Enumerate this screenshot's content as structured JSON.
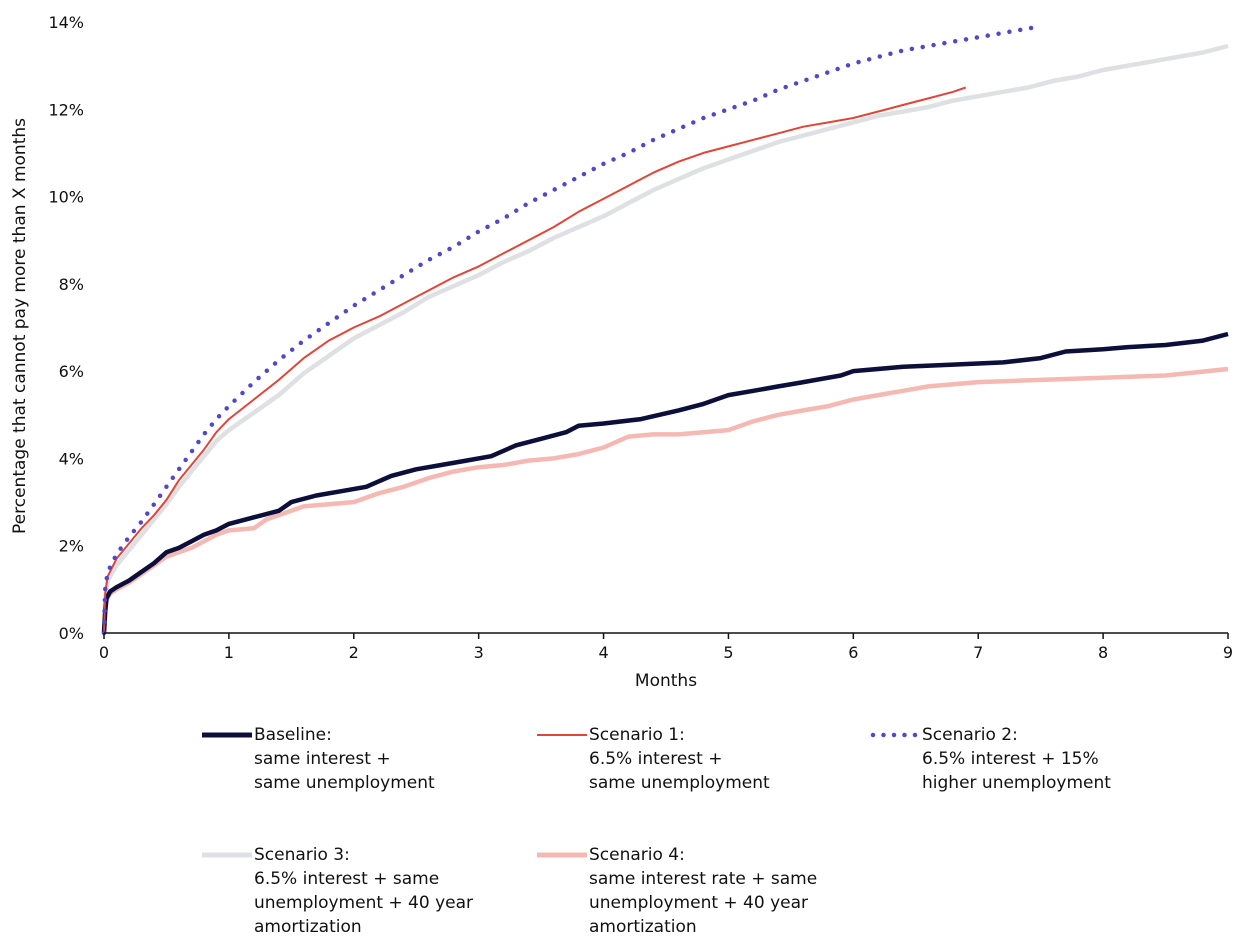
{
  "chart_data": {
    "type": "line",
    "title": "",
    "xlabel": "Months",
    "ylabel": "Percentage that cannot pay more than X months",
    "xlim": [
      0,
      9
    ],
    "ylim": [
      0,
      14
    ],
    "x_ticks": [
      "0",
      "1",
      "2",
      "3",
      "4",
      "5",
      "6",
      "7",
      "8",
      "9"
    ],
    "y_ticks": [
      "0%",
      "2%",
      "4%",
      "6%",
      "8%",
      "10%",
      "12%",
      "14%"
    ],
    "grid": false,
    "legend_position": "bottom",
    "series": [
      {
        "name": "Baseline:",
        "label_lines": [
          "Baseline:",
          "same interest +",
          "same unemployment"
        ],
        "color": "#0b0f3a",
        "style": "solid-thick",
        "points": [
          [
            0,
            0
          ],
          [
            0.01,
            0.5
          ],
          [
            0.02,
            0.8
          ],
          [
            0.05,
            0.95
          ],
          [
            0.1,
            1.05
          ],
          [
            0.2,
            1.2
          ],
          [
            0.3,
            1.4
          ],
          [
            0.4,
            1.6
          ],
          [
            0.5,
            1.85
          ],
          [
            0.6,
            1.95
          ],
          [
            0.7,
            2.1
          ],
          [
            0.8,
            2.25
          ],
          [
            0.9,
            2.35
          ],
          [
            1.0,
            2.5
          ],
          [
            1.2,
            2.65
          ],
          [
            1.4,
            2.8
          ],
          [
            1.5,
            3.0
          ],
          [
            1.7,
            3.15
          ],
          [
            1.9,
            3.25
          ],
          [
            2.1,
            3.35
          ],
          [
            2.3,
            3.6
          ],
          [
            2.5,
            3.75
          ],
          [
            2.7,
            3.85
          ],
          [
            2.9,
            3.95
          ],
          [
            3.1,
            4.05
          ],
          [
            3.3,
            4.3
          ],
          [
            3.5,
            4.45
          ],
          [
            3.7,
            4.6
          ],
          [
            3.8,
            4.75
          ],
          [
            4.0,
            4.8
          ],
          [
            4.3,
            4.9
          ],
          [
            4.6,
            5.1
          ],
          [
            4.8,
            5.25
          ],
          [
            5.0,
            5.45
          ],
          [
            5.2,
            5.55
          ],
          [
            5.4,
            5.65
          ],
          [
            5.6,
            5.75
          ],
          [
            5.9,
            5.9
          ],
          [
            6.0,
            6.0
          ],
          [
            6.4,
            6.1
          ],
          [
            6.8,
            6.15
          ],
          [
            7.2,
            6.2
          ],
          [
            7.5,
            6.3
          ],
          [
            7.7,
            6.45
          ],
          [
            8.0,
            6.5
          ],
          [
            8.2,
            6.55
          ],
          [
            8.5,
            6.6
          ],
          [
            8.8,
            6.7
          ],
          [
            9.0,
            6.85
          ]
        ]
      },
      {
        "name": "Scenario 1:",
        "label_lines": [
          "Scenario 1:",
          "6.5% interest +",
          "same unemployment"
        ],
        "color": "#e0453a",
        "style": "solid-thin",
        "points": [
          [
            0,
            0
          ],
          [
            0.01,
            0.9
          ],
          [
            0.03,
            1.3
          ],
          [
            0.1,
            1.7
          ],
          [
            0.2,
            2.05
          ],
          [
            0.3,
            2.4
          ],
          [
            0.4,
            2.7
          ],
          [
            0.5,
            3.05
          ],
          [
            0.6,
            3.5
          ],
          [
            0.7,
            3.85
          ],
          [
            0.8,
            4.2
          ],
          [
            0.9,
            4.6
          ],
          [
            1.0,
            4.9
          ],
          [
            1.2,
            5.35
          ],
          [
            1.4,
            5.8
          ],
          [
            1.6,
            6.3
          ],
          [
            1.8,
            6.7
          ],
          [
            2.0,
            7.0
          ],
          [
            2.2,
            7.25
          ],
          [
            2.4,
            7.55
          ],
          [
            2.6,
            7.85
          ],
          [
            2.8,
            8.15
          ],
          [
            3.0,
            8.4
          ],
          [
            3.2,
            8.7
          ],
          [
            3.4,
            9.0
          ],
          [
            3.6,
            9.3
          ],
          [
            3.8,
            9.65
          ],
          [
            4.0,
            9.95
          ],
          [
            4.2,
            10.25
          ],
          [
            4.4,
            10.55
          ],
          [
            4.6,
            10.8
          ],
          [
            4.8,
            11.0
          ],
          [
            5.0,
            11.15
          ],
          [
            5.2,
            11.3
          ],
          [
            5.4,
            11.45
          ],
          [
            5.6,
            11.6
          ],
          [
            5.8,
            11.7
          ],
          [
            6.0,
            11.8
          ],
          [
            6.2,
            11.95
          ],
          [
            6.4,
            12.1
          ],
          [
            6.6,
            12.25
          ],
          [
            6.8,
            12.4
          ],
          [
            6.9,
            12.5
          ]
        ]
      },
      {
        "name": "Scenario 2:",
        "label_lines": [
          "Scenario 2:",
          "6.5% interest + 15%",
          "higher unemployment"
        ],
        "color": "#5148c6",
        "style": "dotted",
        "points": [
          [
            0,
            0
          ],
          [
            0.01,
            1.0
          ],
          [
            0.03,
            1.4
          ],
          [
            0.1,
            1.8
          ],
          [
            0.2,
            2.2
          ],
          [
            0.3,
            2.55
          ],
          [
            0.4,
            2.95
          ],
          [
            0.5,
            3.35
          ],
          [
            0.6,
            3.75
          ],
          [
            0.7,
            4.15
          ],
          [
            0.8,
            4.55
          ],
          [
            0.9,
            4.9
          ],
          [
            1.0,
            5.2
          ],
          [
            1.2,
            5.75
          ],
          [
            1.4,
            6.25
          ],
          [
            1.6,
            6.7
          ],
          [
            1.8,
            7.1
          ],
          [
            2.0,
            7.5
          ],
          [
            2.2,
            7.85
          ],
          [
            2.4,
            8.2
          ],
          [
            2.6,
            8.55
          ],
          [
            2.8,
            8.85
          ],
          [
            3.0,
            9.2
          ],
          [
            3.2,
            9.5
          ],
          [
            3.4,
            9.85
          ],
          [
            3.6,
            10.15
          ],
          [
            3.8,
            10.45
          ],
          [
            4.0,
            10.75
          ],
          [
            4.2,
            11.0
          ],
          [
            4.4,
            11.3
          ],
          [
            4.6,
            11.55
          ],
          [
            4.8,
            11.8
          ],
          [
            5.0,
            12.0
          ],
          [
            5.2,
            12.2
          ],
          [
            5.4,
            12.45
          ],
          [
            5.6,
            12.65
          ],
          [
            5.8,
            12.85
          ],
          [
            6.0,
            13.05
          ],
          [
            6.2,
            13.2
          ],
          [
            6.4,
            13.35
          ],
          [
            6.6,
            13.45
          ],
          [
            6.8,
            13.55
          ],
          [
            7.0,
            13.65
          ],
          [
            7.2,
            13.75
          ],
          [
            7.4,
            13.85
          ],
          [
            7.5,
            13.9
          ]
        ]
      },
      {
        "name": "Scenario 3:",
        "label_lines": [
          "Scenario 3:",
          "6.5% interest + same",
          "unemployment + 40 year",
          "amortization"
        ],
        "color": "#dfe0e3",
        "style": "solid-thick",
        "points": [
          [
            0,
            0
          ],
          [
            0.01,
            0.8
          ],
          [
            0.03,
            1.2
          ],
          [
            0.1,
            1.55
          ],
          [
            0.2,
            1.9
          ],
          [
            0.3,
            2.25
          ],
          [
            0.4,
            2.6
          ],
          [
            0.5,
            2.95
          ],
          [
            0.6,
            3.35
          ],
          [
            0.7,
            3.7
          ],
          [
            0.8,
            4.05
          ],
          [
            0.9,
            4.4
          ],
          [
            1.0,
            4.65
          ],
          [
            1.2,
            5.05
          ],
          [
            1.4,
            5.45
          ],
          [
            1.6,
            5.95
          ],
          [
            1.8,
            6.35
          ],
          [
            2.0,
            6.75
          ],
          [
            2.2,
            7.05
          ],
          [
            2.4,
            7.35
          ],
          [
            2.6,
            7.7
          ],
          [
            2.8,
            7.95
          ],
          [
            3.0,
            8.2
          ],
          [
            3.2,
            8.5
          ],
          [
            3.4,
            8.75
          ],
          [
            3.6,
            9.05
          ],
          [
            3.8,
            9.3
          ],
          [
            4.0,
            9.55
          ],
          [
            4.2,
            9.85
          ],
          [
            4.4,
            10.15
          ],
          [
            4.6,
            10.4
          ],
          [
            4.8,
            10.65
          ],
          [
            5.0,
            10.85
          ],
          [
            5.2,
            11.05
          ],
          [
            5.4,
            11.25
          ],
          [
            5.6,
            11.4
          ],
          [
            5.8,
            11.55
          ],
          [
            6.0,
            11.7
          ],
          [
            6.2,
            11.85
          ],
          [
            6.4,
            11.95
          ],
          [
            6.6,
            12.05
          ],
          [
            6.8,
            12.2
          ],
          [
            7.0,
            12.3
          ],
          [
            7.2,
            12.4
          ],
          [
            7.4,
            12.5
          ],
          [
            7.6,
            12.65
          ],
          [
            7.8,
            12.75
          ],
          [
            8.0,
            12.9
          ],
          [
            8.2,
            13.0
          ],
          [
            8.4,
            13.1
          ],
          [
            8.6,
            13.2
          ],
          [
            8.8,
            13.3
          ],
          [
            9.0,
            13.45
          ]
        ]
      },
      {
        "name": "Scenario 4:",
        "label_lines": [
          "Scenario 4:",
          "same interest rate + same",
          "unemployment + 40 year",
          "amortization"
        ],
        "color": "#f4b9b3",
        "style": "solid-thick",
        "points": [
          [
            0,
            0
          ],
          [
            0.01,
            0.45
          ],
          [
            0.02,
            0.75
          ],
          [
            0.05,
            0.9
          ],
          [
            0.1,
            1.0
          ],
          [
            0.2,
            1.15
          ],
          [
            0.3,
            1.35
          ],
          [
            0.4,
            1.55
          ],
          [
            0.5,
            1.75
          ],
          [
            0.6,
            1.85
          ],
          [
            0.7,
            1.95
          ],
          [
            0.8,
            2.1
          ],
          [
            0.9,
            2.25
          ],
          [
            1.0,
            2.35
          ],
          [
            1.2,
            2.4
          ],
          [
            1.3,
            2.6
          ],
          [
            1.5,
            2.8
          ],
          [
            1.6,
            2.9
          ],
          [
            1.8,
            2.95
          ],
          [
            2.0,
            3.0
          ],
          [
            2.2,
            3.2
          ],
          [
            2.4,
            3.35
          ],
          [
            2.6,
            3.55
          ],
          [
            2.8,
            3.7
          ],
          [
            3.0,
            3.8
          ],
          [
            3.2,
            3.85
          ],
          [
            3.4,
            3.95
          ],
          [
            3.6,
            4.0
          ],
          [
            3.8,
            4.1
          ],
          [
            4.0,
            4.25
          ],
          [
            4.2,
            4.5
          ],
          [
            4.4,
            4.55
          ],
          [
            4.6,
            4.55
          ],
          [
            4.8,
            4.6
          ],
          [
            5.0,
            4.65
          ],
          [
            5.2,
            4.85
          ],
          [
            5.4,
            5.0
          ],
          [
            5.6,
            5.1
          ],
          [
            5.8,
            5.2
          ],
          [
            6.0,
            5.35
          ],
          [
            6.2,
            5.45
          ],
          [
            6.4,
            5.55
          ],
          [
            6.6,
            5.65
          ],
          [
            6.8,
            5.7
          ],
          [
            7.0,
            5.75
          ],
          [
            7.5,
            5.8
          ],
          [
            8.0,
            5.85
          ],
          [
            8.5,
            5.9
          ],
          [
            9.0,
            6.05
          ]
        ]
      }
    ]
  }
}
